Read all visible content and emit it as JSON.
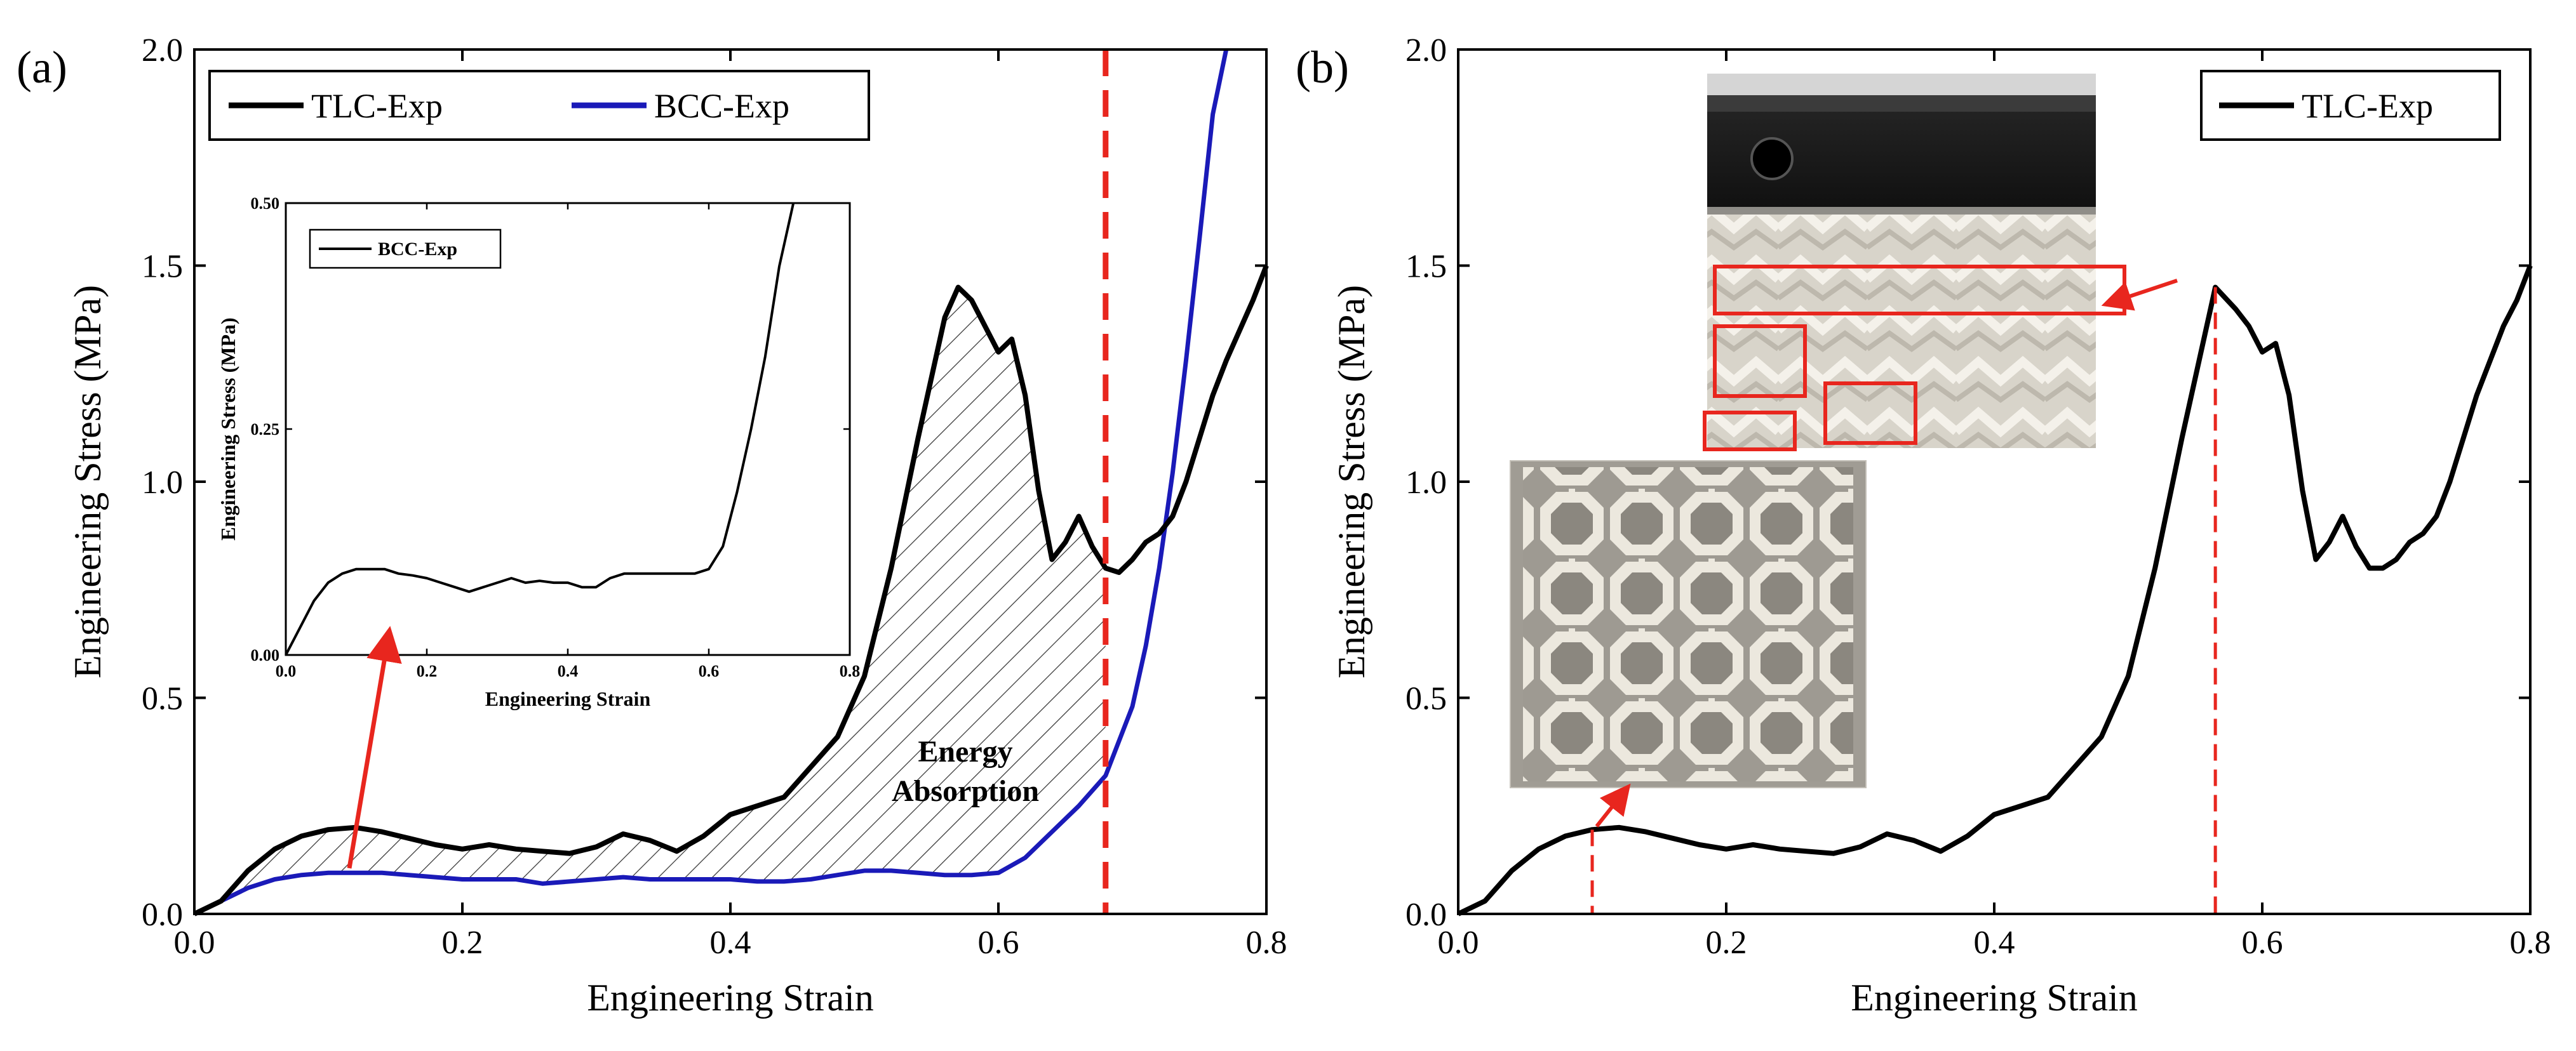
{
  "colors": {
    "tlc": "#000000",
    "bcc": "#1a1ab8",
    "marker": "#e8261e",
    "hatch": "#333333"
  },
  "chart_data": [
    {
      "panel": "(a)",
      "type": "line",
      "xlabel": "Engineering Strain",
      "ylabel": "Engineering Stress (MPa)",
      "xlim": [
        0,
        0.8
      ],
      "ylim": [
        0,
        2.0
      ],
      "xticks": [
        "0.0",
        "0.2",
        "0.4",
        "0.6",
        "0.8"
      ],
      "yticks": [
        "0.0",
        "0.5",
        "1.0",
        "1.5",
        "2.0"
      ],
      "legend_position": "top-left",
      "series": [
        {
          "name": "TLC-Exp",
          "color": "#000000",
          "x": [
            0,
            0.02,
            0.04,
            0.06,
            0.08,
            0.1,
            0.12,
            0.14,
            0.16,
            0.18,
            0.2,
            0.22,
            0.24,
            0.26,
            0.28,
            0.3,
            0.32,
            0.34,
            0.36,
            0.38,
            0.4,
            0.42,
            0.44,
            0.46,
            0.48,
            0.5,
            0.52,
            0.54,
            0.56,
            0.57,
            0.58,
            0.59,
            0.6,
            0.61,
            0.62,
            0.63,
            0.64,
            0.65,
            0.66,
            0.67,
            0.68,
            0.69,
            0.7,
            0.71,
            0.72,
            0.73,
            0.74,
            0.75,
            0.76,
            0.77,
            0.78,
            0.79,
            0.8
          ],
          "y": [
            0,
            0.03,
            0.1,
            0.15,
            0.18,
            0.195,
            0.2,
            0.19,
            0.175,
            0.16,
            0.15,
            0.16,
            0.15,
            0.145,
            0.14,
            0.155,
            0.185,
            0.17,
            0.145,
            0.18,
            0.23,
            0.25,
            0.27,
            0.34,
            0.41,
            0.55,
            0.8,
            1.1,
            1.38,
            1.45,
            1.42,
            1.36,
            1.3,
            1.33,
            1.2,
            0.98,
            0.82,
            0.86,
            0.92,
            0.85,
            0.8,
            0.79,
            0.82,
            0.86,
            0.88,
            0.92,
            1.0,
            1.1,
            1.2,
            1.28,
            1.35,
            1.42,
            1.5
          ]
        },
        {
          "name": "BCC-Exp",
          "color": "#1a1ab8",
          "x": [
            0,
            0.02,
            0.04,
            0.06,
            0.08,
            0.1,
            0.12,
            0.14,
            0.16,
            0.18,
            0.2,
            0.22,
            0.24,
            0.26,
            0.28,
            0.3,
            0.32,
            0.34,
            0.36,
            0.38,
            0.4,
            0.42,
            0.44,
            0.46,
            0.48,
            0.5,
            0.52,
            0.54,
            0.56,
            0.58,
            0.6,
            0.62,
            0.64,
            0.66,
            0.68,
            0.7,
            0.71,
            0.72,
            0.73,
            0.74,
            0.75,
            0.76,
            0.77
          ],
          "y": [
            0,
            0.03,
            0.06,
            0.08,
            0.09,
            0.095,
            0.095,
            0.095,
            0.09,
            0.085,
            0.08,
            0.08,
            0.08,
            0.07,
            0.075,
            0.08,
            0.085,
            0.08,
            0.08,
            0.08,
            0.08,
            0.075,
            0.075,
            0.08,
            0.09,
            0.1,
            0.1,
            0.095,
            0.09,
            0.09,
            0.095,
            0.13,
            0.19,
            0.25,
            0.32,
            0.48,
            0.62,
            0.8,
            1.02,
            1.28,
            1.56,
            1.85,
            2.0
          ]
        }
      ],
      "annotations": [
        {
          "text_lines": [
            "Energy",
            "Absorption"
          ]
        }
      ],
      "reference_line_x": 0.68,
      "inset": {
        "xlabel": "Engineering Strain",
        "ylabel": "Engineering Stress (MPa)",
        "xlim": [
          0,
          0.8
        ],
        "ylim": [
          0,
          0.5
        ],
        "xticks": [
          "0.0",
          "0.2",
          "0.4",
          "0.6",
          "0.8"
        ],
        "yticks": [
          "0.00",
          "0.25",
          "0.50"
        ],
        "series": [
          {
            "name": "BCC-Exp",
            "color": "#000000",
            "x": [
              0,
              0.02,
              0.04,
              0.06,
              0.08,
              0.1,
              0.12,
              0.14,
              0.16,
              0.18,
              0.2,
              0.22,
              0.24,
              0.26,
              0.28,
              0.3,
              0.32,
              0.34,
              0.36,
              0.38,
              0.4,
              0.42,
              0.44,
              0.46,
              0.48,
              0.5,
              0.52,
              0.54,
              0.56,
              0.58,
              0.6,
              0.62,
              0.64,
              0.66,
              0.68,
              0.7,
              0.72
            ],
            "y": [
              0,
              0.03,
              0.06,
              0.08,
              0.09,
              0.095,
              0.095,
              0.095,
              0.09,
              0.088,
              0.085,
              0.08,
              0.075,
              0.07,
              0.075,
              0.08,
              0.085,
              0.08,
              0.082,
              0.08,
              0.08,
              0.075,
              0.075,
              0.085,
              0.09,
              0.09,
              0.09,
              0.09,
              0.09,
              0.09,
              0.095,
              0.12,
              0.18,
              0.25,
              0.33,
              0.43,
              0.5
            ]
          }
        ]
      }
    },
    {
      "panel": "(b)",
      "type": "line",
      "xlabel": "Engineering Strain",
      "ylabel": "Engineering Stress (MPa)",
      "xlim": [
        0,
        0.8
      ],
      "ylim": [
        0,
        2.0
      ],
      "xticks": [
        "0.0",
        "0.2",
        "0.4",
        "0.6",
        "0.8"
      ],
      "yticks": [
        "0.0",
        "0.5",
        "1.0",
        "1.5",
        "2.0"
      ],
      "legend_position": "top-right",
      "series": [
        {
          "name": "TLC-Exp",
          "color": "#000000",
          "x": [
            0,
            0.02,
            0.04,
            0.06,
            0.08,
            0.1,
            0.12,
            0.14,
            0.16,
            0.18,
            0.2,
            0.22,
            0.24,
            0.26,
            0.28,
            0.3,
            0.32,
            0.34,
            0.36,
            0.38,
            0.4,
            0.42,
            0.44,
            0.46,
            0.48,
            0.5,
            0.52,
            0.54,
            0.56,
            0.565,
            0.58,
            0.59,
            0.6,
            0.61,
            0.62,
            0.63,
            0.64,
            0.65,
            0.66,
            0.67,
            0.68,
            0.69,
            0.7,
            0.71,
            0.72,
            0.73,
            0.74,
            0.75,
            0.76,
            0.77,
            0.78,
            0.79,
            0.8
          ],
          "y": [
            0,
            0.03,
            0.1,
            0.15,
            0.18,
            0.195,
            0.2,
            0.19,
            0.175,
            0.16,
            0.15,
            0.16,
            0.15,
            0.145,
            0.14,
            0.155,
            0.185,
            0.17,
            0.145,
            0.18,
            0.23,
            0.25,
            0.27,
            0.34,
            0.41,
            0.55,
            0.8,
            1.1,
            1.38,
            1.45,
            1.4,
            1.36,
            1.3,
            1.32,
            1.2,
            0.98,
            0.82,
            0.86,
            0.92,
            0.85,
            0.8,
            0.8,
            0.82,
            0.86,
            0.88,
            0.92,
            1.0,
            1.1,
            1.2,
            1.28,
            1.36,
            1.42,
            1.5
          ]
        }
      ],
      "reference_lines_x": [
        0.1,
        0.565
      ]
    }
  ]
}
